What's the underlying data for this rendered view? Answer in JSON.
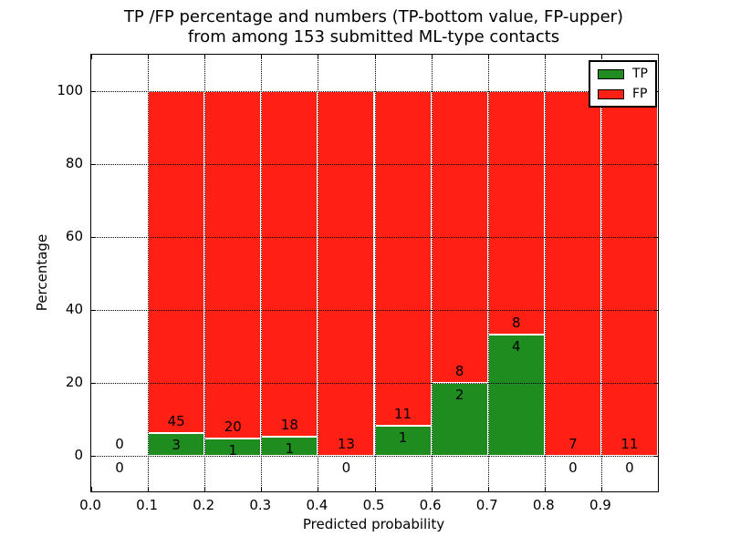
{
  "chart_data": {
    "type": "bar",
    "stacked": true,
    "title_line1": "TP /FP percentage and numbers (TP-bottom value, FP-upper)",
    "title_line2": "from among 153 submitted ML-type contacts",
    "xlabel": "Predicted probability",
    "ylabel": "Percentage",
    "xlim": [
      0.0,
      1.0
    ],
    "ylim": [
      -10,
      110
    ],
    "grid": true,
    "xticks": [
      {
        "v": 0.0,
        "label": "0.0"
      },
      {
        "v": 0.1,
        "label": "0.1"
      },
      {
        "v": 0.2,
        "label": "0.2"
      },
      {
        "v": 0.3,
        "label": "0.3"
      },
      {
        "v": 0.4,
        "label": "0.4"
      },
      {
        "v": 0.5,
        "label": "0.5"
      },
      {
        "v": 0.6,
        "label": "0.6"
      },
      {
        "v": 0.7,
        "label": "0.7"
      },
      {
        "v": 0.8,
        "label": "0.8"
      },
      {
        "v": 0.9,
        "label": "0.9"
      },
      {
        "v": 1.0,
        "label": ""
      }
    ],
    "yticks": [
      {
        "v": 0,
        "label": "0"
      },
      {
        "v": 20,
        "label": "20"
      },
      {
        "v": 40,
        "label": "40"
      },
      {
        "v": 60,
        "label": "60"
      },
      {
        "v": 80,
        "label": "80"
      },
      {
        "v": 100,
        "label": "100"
      }
    ],
    "legend": {
      "position": "upper right",
      "entries": [
        {
          "label": "TP",
          "color_key": "tp"
        },
        {
          "label": "FP",
          "color_key": "fp"
        }
      ]
    },
    "bins": [
      {
        "range": [
          0.0,
          0.1
        ],
        "tp": 0,
        "fp": 0
      },
      {
        "range": [
          0.1,
          0.2
        ],
        "tp": 3,
        "fp": 45
      },
      {
        "range": [
          0.2,
          0.3
        ],
        "tp": 1,
        "fp": 20
      },
      {
        "range": [
          0.3,
          0.4
        ],
        "tp": 1,
        "fp": 18
      },
      {
        "range": [
          0.4,
          0.5
        ],
        "tp": 0,
        "fp": 13
      },
      {
        "range": [
          0.5,
          0.6
        ],
        "tp": 1,
        "fp": 11
      },
      {
        "range": [
          0.6,
          0.7
        ],
        "tp": 2,
        "fp": 8
      },
      {
        "range": [
          0.7,
          0.8
        ],
        "tp": 4,
        "fp": 8
      },
      {
        "range": [
          0.8,
          0.9
        ],
        "tp": 0,
        "fp": 7
      },
      {
        "range": [
          0.9,
          1.0
        ],
        "tp": 0,
        "fp": 11
      }
    ],
    "colors": {
      "tp": "#1e8c1e",
      "fp": "#ff2015",
      "grid": "#000000",
      "axis": "#000000",
      "text": "#000000",
      "bar_edge": "#ffffff",
      "background": "#ffffff"
    }
  }
}
